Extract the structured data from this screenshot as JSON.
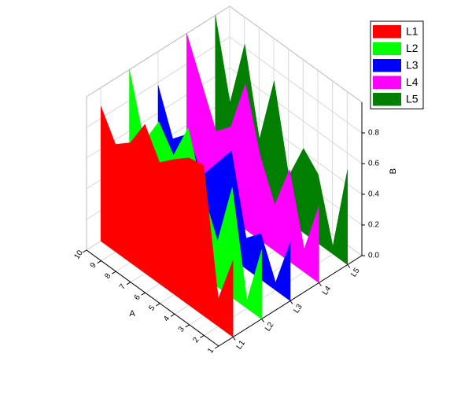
{
  "chart_data": {
    "type": "wall3d",
    "xlabel": "A",
    "ylabel": "B",
    "x": [
      1,
      2,
      3,
      4,
      5,
      6,
      7,
      8,
      9,
      10
    ],
    "xlim": [
      1,
      10
    ],
    "xticks": [
      1,
      2,
      3,
      4,
      5,
      6,
      7,
      8,
      9,
      10
    ],
    "ylim": [
      0,
      1
    ],
    "yticks": [
      {
        "value": 0,
        "label": "0.0"
      },
      {
        "value": 0.2,
        "label": "0.2"
      },
      {
        "value": 0.4,
        "label": "0.4"
      },
      {
        "value": 0.6,
        "label": "0.6"
      },
      {
        "value": 0.8,
        "label": "0.8"
      }
    ],
    "grid": true,
    "legend": "upper right",
    "series": [
      {
        "name": "L1",
        "color": "#ff0000",
        "values": [
          0.5,
          0.18,
          0.98,
          0.96,
          0.88,
          0.79,
          0.97,
          0.78,
          0.7,
          0.88
        ]
      },
      {
        "name": "L2",
        "color": "#00ff00",
        "values": [
          0.45,
          0.05,
          0.72,
          0.3,
          0.55,
          0.9,
          0.65,
          0.8,
          0.6,
          1.0
        ]
      },
      {
        "name": "L3",
        "color": "#0000ff",
        "values": [
          0.38,
          0.05,
          0.3,
          0.2,
          0.7,
          0.55,
          0.4,
          0.6,
          0.5,
          0.78
        ]
      },
      {
        "name": "L4",
        "color": "#ff00ff",
        "values": [
          0.5,
          0.15,
          0.6,
          0.3,
          0.55,
          0.95,
          0.6,
          0.5,
          0.75,
          1.0
        ]
      },
      {
        "name": "L5",
        "color": "#007f00",
        "values": [
          0.62,
          0.05,
          0.45,
          0.55,
          0.3,
          0.85,
          0.4,
          0.95,
          0.5,
          1.0
        ]
      }
    ]
  }
}
